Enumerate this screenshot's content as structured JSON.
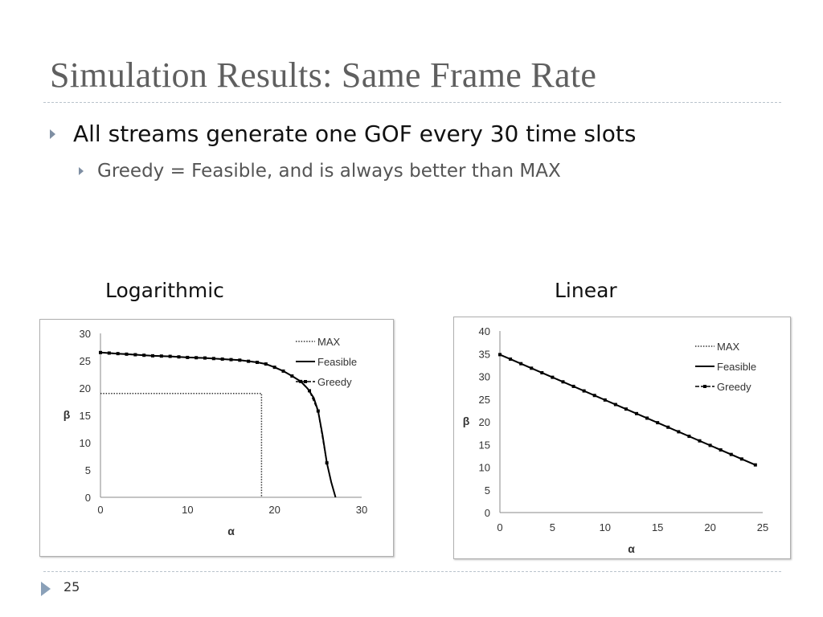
{
  "slide": {
    "title": "Simulation Results: Same Frame Rate",
    "bullets": [
      "All streams generate one GOF every 30 time slots",
      "Greedy = Feasible, and is always better than MAX"
    ],
    "slide_number": "25"
  },
  "chart_data": [
    {
      "type": "line",
      "title": "Logarithmic",
      "xlabel": "α",
      "ylabel": "β",
      "xlim": [
        0,
        30
      ],
      "ylim": [
        0,
        30
      ],
      "xticks": [
        0,
        10,
        20,
        30
      ],
      "yticks": [
        0,
        5,
        10,
        15,
        20,
        25,
        30
      ],
      "legend": "top-right",
      "grid": false,
      "series": [
        {
          "name": "MAX",
          "style": "dotted",
          "color": "#333333",
          "points": [
            [
              0,
              19
            ],
            [
              18.5,
              19
            ],
            [
              18.5,
              0
            ]
          ]
        },
        {
          "name": "Feasible",
          "style": "solid",
          "color": "#000000",
          "points": [
            [
              0,
              26.5
            ],
            [
              2,
              26.3
            ],
            [
              4,
              26.1
            ],
            [
              6,
              25.9
            ],
            [
              8,
              25.8
            ],
            [
              10,
              25.6
            ],
            [
              12,
              25.5
            ],
            [
              14,
              25.3
            ],
            [
              16,
              25.1
            ],
            [
              18,
              24.7
            ],
            [
              19,
              24.4
            ],
            [
              20,
              23.8
            ],
            [
              21,
              23.1
            ],
            [
              22,
              22.2
            ],
            [
              23,
              21.2
            ],
            [
              23.8,
              19.9
            ],
            [
              24.5,
              18.2
            ],
            [
              25,
              15.8
            ],
            [
              25.5,
              11.4
            ],
            [
              26,
              6.3
            ],
            [
              26.5,
              2.8
            ],
            [
              27,
              0
            ]
          ]
        },
        {
          "name": "Greedy",
          "style": "dashed-marker",
          "color": "#000000",
          "points": [
            [
              0,
              26.5
            ],
            [
              1,
              26.4
            ],
            [
              2,
              26.3
            ],
            [
              3,
              26.2
            ],
            [
              4,
              26.1
            ],
            [
              5,
              26.0
            ],
            [
              6,
              25.9
            ],
            [
              7,
              25.85
            ],
            [
              8,
              25.8
            ],
            [
              9,
              25.7
            ],
            [
              10,
              25.6
            ],
            [
              11,
              25.55
            ],
            [
              12,
              25.5
            ],
            [
              13,
              25.4
            ],
            [
              14,
              25.3
            ],
            [
              15,
              25.2
            ],
            [
              16,
              25.1
            ],
            [
              17,
              24.9
            ],
            [
              18,
              24.7
            ],
            [
              19,
              24.4
            ],
            [
              20,
              23.8
            ],
            [
              21,
              23.1
            ],
            [
              22,
              22.2
            ],
            [
              23,
              21.2
            ],
            [
              24,
              19.5
            ],
            [
              25,
              15.8
            ],
            [
              26,
              6.3
            ]
          ]
        }
      ]
    },
    {
      "type": "line",
      "title": "Linear",
      "xlabel": "α",
      "ylabel": "β",
      "xlim": [
        0,
        25
      ],
      "ylim": [
        0,
        40
      ],
      "xticks": [
        0,
        5,
        10,
        15,
        20,
        25
      ],
      "yticks": [
        0,
        5,
        10,
        15,
        20,
        25,
        30,
        35,
        40
      ],
      "legend": "top-right",
      "grid": false,
      "series": [
        {
          "name": "MAX",
          "style": "dotted",
          "color": "#333333",
          "points": [
            [
              0,
              34.8
            ],
            [
              24.3,
              10.5
            ]
          ]
        },
        {
          "name": "Feasible",
          "style": "solid",
          "color": "#000000",
          "points": [
            [
              0,
              34.8
            ],
            [
              24.3,
              10.5
            ]
          ]
        },
        {
          "name": "Greedy",
          "style": "dashed-marker",
          "color": "#000000",
          "points": [
            [
              0,
              34.8
            ],
            [
              1,
              33.8
            ],
            [
              2,
              32.8
            ],
            [
              3,
              31.8
            ],
            [
              4,
              30.8
            ],
            [
              5,
              29.8
            ],
            [
              6,
              28.8
            ],
            [
              7,
              27.8
            ],
            [
              8,
              26.8
            ],
            [
              9,
              25.8
            ],
            [
              10,
              24.8
            ],
            [
              11,
              23.8
            ],
            [
              12,
              22.8
            ],
            [
              13,
              21.8
            ],
            [
              14,
              20.8
            ],
            [
              15,
              19.8
            ],
            [
              16,
              18.8
            ],
            [
              17,
              17.8
            ],
            [
              18,
              16.8
            ],
            [
              19,
              15.8
            ],
            [
              20,
              14.8
            ],
            [
              21,
              13.8
            ],
            [
              22,
              12.8
            ],
            [
              23,
              11.8
            ],
            [
              24.3,
              10.5
            ]
          ]
        }
      ]
    }
  ]
}
